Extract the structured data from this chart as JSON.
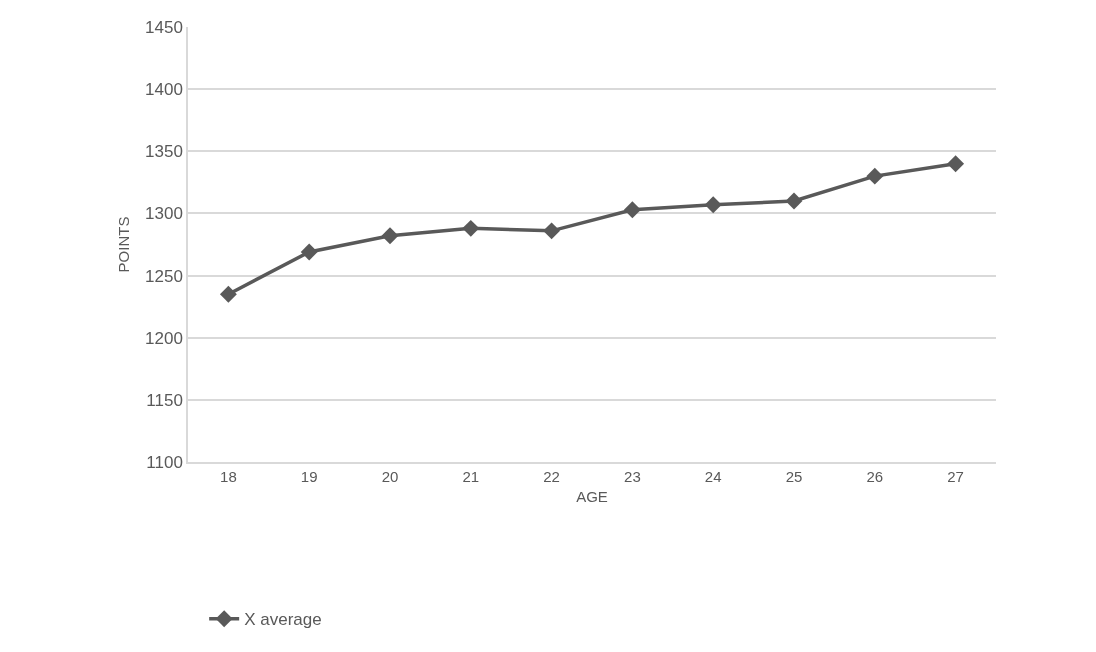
{
  "chart_data": {
    "type": "line",
    "xlabel": "AGE",
    "ylabel": "POINTS",
    "categories": [
      "18",
      "19",
      "20",
      "21",
      "22",
      "23",
      "24",
      "25",
      "26",
      "27"
    ],
    "series": [
      {
        "name": "X average",
        "color": "#595959",
        "values": [
          1235,
          1269,
          1282,
          1288,
          1286,
          1303,
          1307,
          1310,
          1330,
          1340
        ]
      }
    ],
    "ylim": [
      1100,
      1450
    ],
    "yticks": [
      1100,
      1150,
      1200,
      1250,
      1300,
      1350,
      1400,
      1450
    ],
    "grid": "y",
    "legend": "bottom",
    "marker": "diamond",
    "line_style": "solid"
  }
}
